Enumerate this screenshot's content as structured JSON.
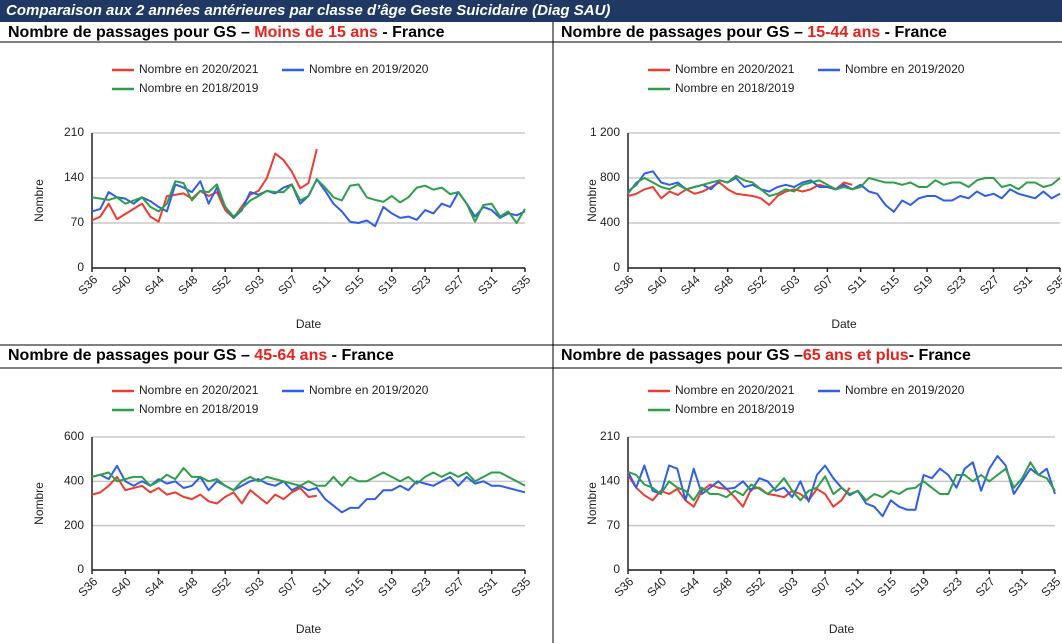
{
  "header": "Comparaison aux 2 années antérieures par classe d’âge Geste Suicidaire (Diag SAU)",
  "chart_data": [
    {
      "type": "line",
      "title": "Nombre de passages pour GS – ",
      "title_highlight": "Moins de 15 ans",
      "title_suffix": " - France",
      "x_label": "Date",
      "y_label": "Nombre",
      "categories": [
        "S36",
        null,
        null,
        null,
        "S40",
        null,
        null,
        null,
        "S44",
        null,
        null,
        null,
        "S48",
        null,
        null,
        null,
        "S52",
        null,
        null,
        null,
        "S03",
        null,
        null,
        null,
        "S07",
        null,
        null,
        null,
        "S11",
        null,
        null,
        null,
        "S15",
        null,
        null,
        null,
        "S19",
        null,
        null,
        null,
        "S23",
        null,
        null,
        null,
        "S27",
        null,
        null,
        null,
        "S31",
        null,
        null,
        null,
        "S35"
      ],
      "ylim": [
        0,
        210
      ],
      "yticks": [
        0,
        70,
        140,
        210
      ],
      "grid": true,
      "series": [
        {
          "name": "Nombre en 2020/2021",
          "color": "#ee3b2f",
          "values": [
            74,
            80,
            100,
            76,
            84,
            92,
            100,
            80,
            72,
            112,
            114,
            116,
            108,
            120,
            112,
            118,
            90,
            78,
            96,
            114,
            120,
            140,
            178,
            168,
            150,
            124,
            132,
            185,
            null,
            null,
            null,
            null,
            null,
            null,
            null,
            null,
            null,
            null,
            null,
            null,
            null,
            null,
            null,
            null,
            null,
            null,
            null,
            null,
            null,
            null,
            null,
            null,
            null
          ]
        },
        {
          "name": "Nombre en 2019/2020",
          "color": "#2f5ee8",
          "values": [
            88,
            92,
            118,
            110,
            108,
            100,
            110,
            104,
            95,
            88,
            130,
            125,
            118,
            135,
            100,
            125,
            95,
            78,
            90,
            118,
            114,
            120,
            116,
            125,
            130,
            100,
            112,
            138,
            120,
            100,
            88,
            72,
            70,
            74,
            65,
            95,
            85,
            78,
            80,
            75,
            90,
            85,
            100,
            95,
            118,
            100,
            80,
            95,
            90,
            78,
            85,
            82,
            88
          ]
        },
        {
          "name": "Nombre en 2018/2019",
          "color": "#2f9e48",
          "values": [
            110,
            108,
            106,
            110,
            100,
            105,
            110,
            95,
            88,
            100,
            135,
            132,
            105,
            120,
            118,
            130,
            95,
            80,
            92,
            105,
            112,
            120,
            118,
            118,
            130,
            105,
            112,
            138,
            125,
            110,
            105,
            128,
            130,
            110,
            106,
            103,
            112,
            102,
            110,
            125,
            128,
            122,
            125,
            115,
            118,
            100,
            72,
            98,
            100,
            80,
            88,
            70,
            92
          ]
        }
      ]
    },
    {
      "type": "line",
      "title": "Nombre de passages pour GS – ",
      "title_highlight": "15-44 ans",
      "title_suffix": " - France",
      "x_label": "Date",
      "y_label": "Nombre",
      "categories": [
        "S36",
        null,
        null,
        null,
        "S40",
        null,
        null,
        null,
        "S44",
        null,
        null,
        null,
        "S48",
        null,
        null,
        null,
        "S52",
        null,
        null,
        null,
        "S03",
        null,
        null,
        null,
        "S07",
        null,
        null,
        null,
        "S11",
        null,
        null,
        null,
        "S15",
        null,
        null,
        null,
        "S19",
        null,
        null,
        null,
        "S23",
        null,
        null,
        null,
        "S27",
        null,
        null,
        null,
        "S31",
        null,
        null,
        null,
        "S35"
      ],
      "ylim": [
        0,
        1200
      ],
      "yticks": [
        0,
        400,
        800,
        {
          "value": 1200,
          "label": "1 200"
        }
      ],
      "grid": true,
      "series": [
        {
          "name": "Nombre en 2020/2021",
          "color": "#ee3b2f",
          "values": [
            640,
            660,
            700,
            720,
            620,
            680,
            650,
            700,
            660,
            680,
            720,
            760,
            700,
            660,
            650,
            640,
            620,
            560,
            640,
            680,
            700,
            680,
            700,
            740,
            720,
            700,
            760,
            740,
            null,
            null,
            null,
            null,
            null,
            null,
            null,
            null,
            null,
            null,
            null,
            null,
            null,
            null,
            null,
            null,
            null,
            null,
            null,
            null,
            null,
            null,
            null,
            null,
            null
          ]
        },
        {
          "name": "Nombre en 2019/2020",
          "color": "#2f5ee8",
          "values": [
            680,
            740,
            840,
            860,
            760,
            740,
            760,
            700,
            720,
            740,
            700,
            780,
            760,
            800,
            720,
            740,
            700,
            680,
            720,
            740,
            720,
            760,
            780,
            720,
            720,
            700,
            740,
            700,
            740,
            680,
            660,
            560,
            500,
            600,
            560,
            620,
            640,
            640,
            600,
            600,
            640,
            620,
            680,
            640,
            660,
            620,
            700,
            660,
            640,
            620,
            680,
            620,
            660
          ]
        },
        {
          "name": "Nombre en 2018/2019",
          "color": "#2f9e48",
          "values": [
            660,
            760,
            800,
            760,
            720,
            700,
            740,
            700,
            720,
            740,
            760,
            780,
            760,
            820,
            780,
            760,
            700,
            640,
            660,
            700,
            680,
            740,
            760,
            780,
            740,
            700,
            720,
            700,
            720,
            800,
            780,
            760,
            760,
            740,
            760,
            720,
            720,
            780,
            740,
            760,
            760,
            720,
            780,
            800,
            800,
            720,
            740,
            700,
            760,
            760,
            720,
            740,
            800
          ]
        }
      ]
    },
    {
      "type": "line",
      "title": "Nombre de passages pour GS – ",
      "title_highlight": "45-64 ans",
      "title_suffix": " - France",
      "x_label": "Date",
      "y_label": "Nombre",
      "categories": [
        "S36",
        null,
        null,
        null,
        "S40",
        null,
        null,
        null,
        "S44",
        null,
        null,
        null,
        "S48",
        null,
        null,
        null,
        "S52",
        null,
        null,
        null,
        "S03",
        null,
        null,
        null,
        "S07",
        null,
        null,
        null,
        "S11",
        null,
        null,
        null,
        "S15",
        null,
        null,
        null,
        "S19",
        null,
        null,
        null,
        "S23",
        null,
        null,
        null,
        "S27",
        null,
        null,
        null,
        "S31",
        null,
        null,
        null,
        "S35"
      ],
      "ylim": [
        0,
        600
      ],
      "yticks": [
        0,
        200,
        400,
        600
      ],
      "grid": true,
      "series": [
        {
          "name": "Nombre en 2020/2021",
          "color": "#ee3b2f",
          "values": [
            340,
            350,
            380,
            420,
            360,
            370,
            380,
            350,
            370,
            340,
            350,
            330,
            320,
            340,
            310,
            300,
            330,
            350,
            300,
            360,
            330,
            300,
            340,
            320,
            350,
            370,
            330,
            335,
            null,
            null,
            null,
            null,
            null,
            null,
            null,
            null,
            null,
            null,
            null,
            null,
            null,
            null,
            null,
            null,
            null,
            null,
            null,
            null,
            null,
            null,
            null,
            null,
            null
          ]
        },
        {
          "name": "Nombre en 2019/2020",
          "color": "#2f5ee8",
          "values": [
            420,
            430,
            410,
            470,
            400,
            380,
            400,
            380,
            410,
            390,
            400,
            370,
            380,
            420,
            360,
            400,
            380,
            360,
            380,
            400,
            410,
            390,
            380,
            400,
            360,
            380,
            360,
            370,
            320,
            290,
            260,
            280,
            280,
            320,
            320,
            360,
            360,
            380,
            360,
            400,
            390,
            380,
            400,
            420,
            380,
            420,
            390,
            400,
            380,
            380,
            370,
            360,
            350
          ]
        },
        {
          "name": "Nombre en 2018/2019",
          "color": "#2f9e48",
          "values": [
            420,
            430,
            440,
            400,
            410,
            420,
            420,
            380,
            400,
            430,
            410,
            460,
            420,
            420,
            400,
            410,
            380,
            360,
            400,
            420,
            400,
            420,
            410,
            400,
            390,
            380,
            400,
            380,
            380,
            420,
            380,
            420,
            400,
            400,
            420,
            440,
            420,
            400,
            420,
            390,
            420,
            440,
            420,
            440,
            420,
            440,
            400,
            420,
            440,
            440,
            420,
            400,
            380
          ]
        }
      ]
    },
    {
      "type": "line",
      "title": "Nombre de passages pour GS –",
      "title_highlight": "65 ans et plus",
      "title_suffix": "- France",
      "x_label": "Date",
      "y_label": "Nombre",
      "categories": [
        "S36",
        null,
        null,
        null,
        "S40",
        null,
        null,
        null,
        "S44",
        null,
        null,
        null,
        "S48",
        null,
        null,
        null,
        "S52",
        null,
        null,
        null,
        "S03",
        null,
        null,
        null,
        "S07",
        null,
        null,
        null,
        "S11",
        null,
        null,
        null,
        "S15",
        null,
        null,
        null,
        "S19",
        null,
        null,
        null,
        "S23",
        null,
        null,
        null,
        "S27",
        null,
        null,
        null,
        "S31",
        null,
        null,
        null,
        "S35"
      ],
      "ylim": [
        0,
        210
      ],
      "yticks": [
        0,
        70,
        140,
        210
      ],
      "grid": true,
      "series": [
        {
          "name": "Nombre en 2020/2021",
          "color": "#ee3b2f",
          "values": [
            150,
            130,
            118,
            110,
            125,
            120,
            128,
            110,
            100,
            125,
            135,
            130,
            128,
            115,
            100,
            128,
            130,
            120,
            118,
            115,
            125,
            120,
            110,
            128,
            120,
            100,
            110,
            130,
            null,
            null,
            null,
            null,
            null,
            null,
            null,
            null,
            null,
            null,
            null,
            null,
            null,
            null,
            null,
            null,
            null,
            null,
            null,
            null,
            null,
            null,
            null,
            null,
            null
          ]
        },
        {
          "name": "Nombre en 2019/2020",
          "color": "#2f5ee8",
          "values": [
            155,
            130,
            165,
            125,
            120,
            165,
            160,
            110,
            160,
            120,
            130,
            140,
            128,
            130,
            140,
            125,
            145,
            140,
            125,
            130,
            115,
            140,
            108,
            150,
            165,
            145,
            130,
            118,
            125,
            105,
            100,
            85,
            110,
            100,
            95,
            95,
            150,
            145,
            160,
            150,
            130,
            160,
            170,
            125,
            160,
            180,
            165,
            120,
            140,
            160,
            150,
            160,
            120
          ]
        },
        {
          "name": "Nombre en 2018/2019",
          "color": "#2f9e48",
          "values": [
            155,
            150,
            135,
            130,
            120,
            140,
            130,
            125,
            110,
            130,
            120,
            120,
            115,
            125,
            118,
            135,
            128,
            120,
            130,
            145,
            125,
            110,
            125,
            130,
            148,
            120,
            130,
            120,
            125,
            110,
            120,
            115,
            125,
            120,
            128,
            130,
            140,
            130,
            120,
            120,
            150,
            150,
            140,
            150,
            140,
            150,
            160,
            130,
            145,
            170,
            150,
            145,
            125
          ]
        }
      ]
    }
  ]
}
